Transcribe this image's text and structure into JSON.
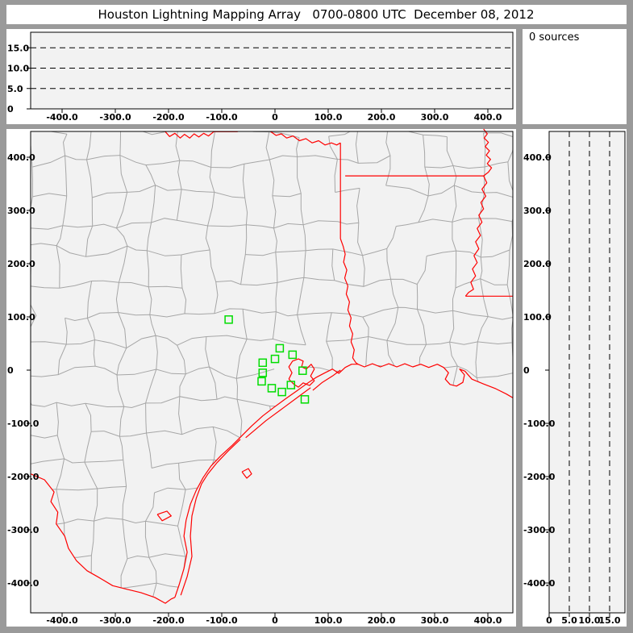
{
  "title": "Houston Lightning Mapping Array   0700-0800 UTC  December 08, 2012",
  "sources_panel": {
    "label": "0 sources"
  },
  "colors": {
    "frame": "#9a9a9a",
    "panel_bg": "#ffffff",
    "plot_bg": "#f2f2f2",
    "axis": "#000000",
    "county_line": "#a6a6a6",
    "state_line": "#ff0000",
    "station_marker": "#00dd00"
  },
  "chart_data": {
    "type": "scatter",
    "title": "Houston Lightning Mapping Array",
    "time_range": "0700-0800 UTC",
    "date": "December 08, 2012",
    "sources_count": 0,
    "legend_position": "top-right-panel",
    "grid": "dashed-altitude-reference-lines",
    "panels": [
      {
        "id": "altitude-vs-east-west",
        "type": "scatter",
        "xlim": [
          -459,
          447
        ],
        "ylim": [
          0,
          18.8
        ],
        "x_ticks": {
          "values": [
            -400,
            -300,
            -200,
            -100,
            0,
            100,
            200,
            300,
            400
          ],
          "labels": [
            "-400.0",
            "-300.0",
            "-200.0",
            "-100.0",
            "0",
            "100.0",
            "200.0",
            "300.0",
            "400.0"
          ]
        },
        "y_ticks": {
          "values": [
            0,
            5,
            10,
            15
          ],
          "labels": [
            "0",
            "5.0",
            "10.0",
            "15.0"
          ]
        },
        "gridlines_y": [
          5,
          10,
          15
        ],
        "points": []
      },
      {
        "id": "plan-view-map",
        "type": "scatter",
        "xlim": [
          -459,
          447
        ],
        "ylim": [
          -456,
          448
        ],
        "x_ticks": {
          "values": [
            -400,
            -300,
            -200,
            -100,
            0,
            100,
            200,
            300,
            400
          ],
          "labels": [
            "-400.0",
            "-300.0",
            "-200.0",
            "-100.0",
            "0",
            "100.0",
            "200.0",
            "300.0",
            "400.0"
          ]
        },
        "y_ticks": {
          "values": [
            400,
            300,
            200,
            100,
            0,
            -100,
            -200,
            -300,
            -400
          ],
          "labels": [
            "400.0",
            "300.0",
            "200.0",
            "100.0",
            "0",
            "-100.0",
            "-200.0",
            "-300.0",
            "-400.0"
          ]
        },
        "points": []
      },
      {
        "id": "altitude-vs-north-south",
        "type": "scatter",
        "xlim": [
          0,
          18.8
        ],
        "ylim": [
          -456,
          448
        ],
        "x_ticks": {
          "values": [
            0,
            5,
            10,
            15
          ],
          "labels": [
            "0",
            "5.0",
            "10.0",
            "15.0"
          ]
        },
        "y_ticks": {
          "values": [
            400,
            300,
            200,
            100,
            0,
            -100,
            -200,
            -300,
            -400
          ],
          "labels": [
            "400.0",
            "300.0",
            "200.0",
            "100.0",
            "0",
            "-100.0",
            "-200.0",
            "-300.0",
            "-400.0"
          ]
        },
        "gridlines_x": [
          5,
          10,
          15
        ],
        "points": []
      }
    ],
    "stations_km": [
      [
        -87,
        95
      ],
      [
        9,
        41
      ],
      [
        33,
        29
      ],
      [
        0,
        21
      ],
      [
        -23,
        14
      ],
      [
        52,
        -1
      ],
      [
        -23,
        -5
      ],
      [
        -25,
        -21
      ],
      [
        30,
        -28
      ],
      [
        -6,
        -34
      ],
      [
        13,
        -41
      ],
      [
        56,
        -55
      ]
    ]
  },
  "map_geometry_km": {
    "rio_grande": [
      [
        -459,
        -195
      ],
      [
        -433,
        -206
      ],
      [
        -415,
        -229
      ],
      [
        -421,
        -247
      ],
      [
        -408,
        -267
      ],
      [
        -411,
        -289
      ],
      [
        -395,
        -312
      ],
      [
        -388,
        -335
      ],
      [
        -373,
        -358
      ],
      [
        -353,
        -377
      ],
      [
        -332,
        -389
      ],
      [
        -305,
        -405
      ],
      [
        -277,
        -412
      ],
      [
        -252,
        -418
      ],
      [
        -226,
        -427
      ],
      [
        -206,
        -438
      ],
      [
        -195,
        -430
      ],
      [
        -188,
        -427
      ]
    ],
    "gulf_coast": [
      [
        -188,
        -427
      ],
      [
        -180,
        -403
      ],
      [
        -171,
        -373
      ],
      [
        -165,
        -342
      ],
      [
        -171,
        -312
      ],
      [
        -167,
        -282
      ],
      [
        -159,
        -252
      ],
      [
        -148,
        -226
      ],
      [
        -135,
        -202
      ],
      [
        -120,
        -180
      ],
      [
        -102,
        -161
      ],
      [
        -80,
        -141
      ],
      [
        -62,
        -123
      ],
      [
        -44,
        -105
      ],
      [
        -23,
        -86
      ],
      [
        -2,
        -70
      ],
      [
        21,
        -53
      ],
      [
        41,
        -39
      ],
      [
        59,
        -26
      ],
      [
        77,
        -14
      ],
      [
        94,
        -5
      ],
      [
        108,
        2
      ],
      [
        120,
        -6
      ],
      [
        132,
        5
      ],
      [
        144,
        11
      ],
      [
        156,
        11
      ],
      [
        168,
        6
      ],
      [
        183,
        12
      ],
      [
        198,
        6
      ],
      [
        214,
        12
      ],
      [
        229,
        6
      ],
      [
        244,
        12
      ],
      [
        259,
        6
      ],
      [
        274,
        11
      ],
      [
        289,
        5
      ],
      [
        305,
        11
      ],
      [
        317,
        5
      ],
      [
        326,
        -5
      ],
      [
        320,
        -17
      ],
      [
        329,
        -27
      ],
      [
        341,
        -30
      ],
      [
        353,
        -23
      ],
      [
        356,
        -9
      ],
      [
        347,
        2
      ],
      [
        357,
        -2
      ],
      [
        370,
        -17
      ],
      [
        392,
        -26
      ],
      [
        415,
        -35
      ],
      [
        435,
        -45
      ],
      [
        447,
        -52
      ]
    ],
    "red_river_west": [
      [
        -206,
        448
      ],
      [
        -198,
        439
      ],
      [
        -188,
        445
      ],
      [
        -178,
        436
      ],
      [
        -170,
        443
      ],
      [
        -160,
        436
      ],
      [
        -152,
        444
      ],
      [
        -143,
        438
      ],
      [
        -134,
        445
      ],
      [
        -125,
        440
      ],
      [
        -115,
        448
      ],
      [
        -95,
        448
      ],
      [
        -70,
        448
      ]
    ],
    "red_river_east": [
      [
        -8,
        448
      ],
      [
        2,
        441
      ],
      [
        12,
        444
      ],
      [
        22,
        436
      ],
      [
        34,
        440
      ],
      [
        46,
        431
      ],
      [
        58,
        435
      ],
      [
        70,
        427
      ],
      [
        82,
        431
      ],
      [
        94,
        423
      ],
      [
        106,
        427
      ],
      [
        116,
        423
      ],
      [
        123,
        427
      ]
    ],
    "tx_ar_border": [
      [
        123,
        427
      ],
      [
        123,
        247
      ]
    ],
    "sabine_river": [
      [
        123,
        247
      ],
      [
        128,
        233
      ],
      [
        132,
        218
      ],
      [
        129,
        203
      ],
      [
        135,
        188
      ],
      [
        131,
        173
      ],
      [
        137,
        158
      ],
      [
        134,
        143
      ],
      [
        140,
        128
      ],
      [
        137,
        113
      ],
      [
        143,
        98
      ],
      [
        140,
        83
      ],
      [
        146,
        68
      ],
      [
        143,
        53
      ],
      [
        149,
        38
      ],
      [
        146,
        23
      ],
      [
        152,
        14
      ],
      [
        156,
        11
      ]
    ],
    "ar_la_border": [
      [
        132,
        365
      ],
      [
        392,
        365
      ]
    ],
    "mississippi_river": [
      [
        392,
        453
      ],
      [
        399,
        444
      ],
      [
        393,
        436
      ],
      [
        401,
        428
      ],
      [
        395,
        420
      ],
      [
        403,
        412
      ],
      [
        397,
        404
      ],
      [
        405,
        396
      ],
      [
        399,
        388
      ],
      [
        407,
        380
      ],
      [
        401,
        372
      ],
      [
        392,
        365
      ],
      [
        398,
        352
      ],
      [
        389,
        340
      ],
      [
        396,
        327
      ],
      [
        387,
        315
      ],
      [
        392,
        303
      ],
      [
        383,
        291
      ],
      [
        389,
        278
      ],
      [
        380,
        266
      ],
      [
        386,
        253
      ],
      [
        377,
        241
      ],
      [
        383,
        228
      ],
      [
        374,
        215
      ],
      [
        380,
        202
      ],
      [
        371,
        190
      ],
      [
        377,
        177
      ],
      [
        368,
        165
      ],
      [
        373,
        152
      ],
      [
        364,
        146
      ],
      [
        358,
        139
      ]
    ],
    "la_ms_border": [
      [
        358,
        139
      ],
      [
        447,
        139
      ]
    ],
    "padre_island": [
      [
        -177,
        -423
      ],
      [
        -165,
        -388
      ],
      [
        -156,
        -350
      ],
      [
        -159,
        -312
      ],
      [
        -156,
        -274
      ],
      [
        -148,
        -241
      ],
      [
        -138,
        -214
      ],
      [
        -126,
        -195
      ],
      [
        -109,
        -174
      ],
      [
        -88,
        -152
      ],
      [
        -65,
        -130
      ]
    ],
    "matagorda_island": [
      [
        -55,
        -127
      ],
      [
        -17,
        -95
      ],
      [
        17,
        -70
      ],
      [
        44,
        -50
      ],
      [
        67,
        -33
      ]
    ],
    "galveston_island": [
      [
        71,
        -38
      ],
      [
        89,
        -23
      ],
      [
        108,
        -11
      ],
      [
        123,
        0
      ]
    ],
    "galveston_bay": [
      [
        26,
        -17
      ],
      [
        32,
        -5
      ],
      [
        26,
        6
      ],
      [
        33,
        17
      ],
      [
        44,
        21
      ],
      [
        53,
        17
      ],
      [
        50,
        6
      ],
      [
        59,
        2
      ],
      [
        68,
        11
      ],
      [
        74,
        2
      ],
      [
        67,
        -11
      ],
      [
        74,
        -20
      ],
      [
        65,
        -29
      ],
      [
        53,
        -24
      ],
      [
        44,
        -32
      ],
      [
        35,
        -26
      ],
      [
        26,
        -17
      ]
    ],
    "corpus_christi_bay": [
      [
        -62,
        -191
      ],
      [
        -50,
        -185
      ],
      [
        -44,
        -195
      ],
      [
        -53,
        -203
      ],
      [
        -62,
        -191
      ]
    ],
    "baffin_bay": [
      [
        -221,
        -271
      ],
      [
        -203,
        -265
      ],
      [
        -195,
        -274
      ],
      [
        -212,
        -283
      ],
      [
        -221,
        -271
      ]
    ]
  }
}
